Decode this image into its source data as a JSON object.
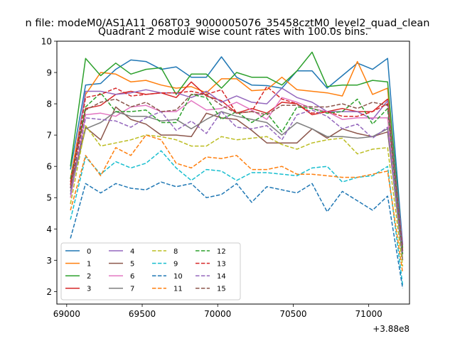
{
  "figure": {
    "suptitle": "n file: modeM0/AS1A11_068T03_9000005076_35458cztM0_level2_quad_clean"
  },
  "chart_data": {
    "type": "line",
    "title": "Quadrant 2 module wise count rates with 100.0s bins.",
    "xlabel": "",
    "ylabel": "",
    "x_offset_label": "+3.88e8",
    "xlim": [
      68935,
      71270
    ],
    "ylim": [
      1.6,
      10.0
    ],
    "xticks": [
      69000,
      69500,
      70000,
      70500,
      71000
    ],
    "yticks": [
      2,
      3,
      4,
      5,
      6,
      7,
      8,
      9,
      10
    ],
    "grid": false,
    "legend": {
      "location": "lower-left",
      "columns": 4
    },
    "x": [
      69025,
      69125,
      69225,
      69325,
      69425,
      69525,
      69625,
      69725,
      69825,
      69925,
      70025,
      70125,
      70225,
      70325,
      70425,
      70525,
      70625,
      70725,
      70825,
      70925,
      71025,
      71125,
      71225
    ],
    "series": [
      {
        "name": "0",
        "color": "#1f77b4",
        "dash": "solid",
        "values": [
          5.9,
          8.6,
          8.65,
          9.1,
          9.4,
          9.35,
          9.1,
          9.18,
          8.85,
          8.85,
          9.5,
          8.85,
          8.6,
          8.58,
          8.5,
          9.05,
          9.05,
          8.5,
          8.9,
          9.3,
          9.1,
          9.45,
          3.5
        ]
      },
      {
        "name": "1",
        "color": "#ff7f0e",
        "dash": "solid",
        "values": [
          5.6,
          8.3,
          9.0,
          8.95,
          8.7,
          8.75,
          8.6,
          8.5,
          8.55,
          8.35,
          8.8,
          8.8,
          8.42,
          8.45,
          8.85,
          8.45,
          8.4,
          8.35,
          8.25,
          9.35,
          8.3,
          8.5,
          3.0
        ]
      },
      {
        "name": "2",
        "color": "#2ca02c",
        "dash": "solid",
        "values": [
          6.0,
          9.45,
          8.9,
          9.3,
          8.95,
          9.1,
          9.15,
          8.3,
          8.95,
          8.95,
          8.5,
          9.0,
          8.85,
          8.85,
          8.6,
          9.05,
          9.65,
          8.55,
          8.6,
          8.6,
          8.75,
          8.7,
          3.4
        ]
      },
      {
        "name": "3",
        "color": "#d62728",
        "dash": "solid",
        "values": [
          5.5,
          7.85,
          7.95,
          8.3,
          8.4,
          8.3,
          8.35,
          8.2,
          8.7,
          8.25,
          8.1,
          7.7,
          7.85,
          7.7,
          8.05,
          8.0,
          7.65,
          7.75,
          7.85,
          7.75,
          7.75,
          8.15,
          3.2
        ]
      },
      {
        "name": "4",
        "color": "#9467bd",
        "dash": "solid",
        "values": [
          5.3,
          8.4,
          8.4,
          8.3,
          8.35,
          8.45,
          8.35,
          8.35,
          8.2,
          8.4,
          8.05,
          8.25,
          8.05,
          8.0,
          8.5,
          8.2,
          8.05,
          7.75,
          7.75,
          7.75,
          7.5,
          8.1,
          3.5
        ]
      },
      {
        "name": "5",
        "color": "#8c564b",
        "dash": "solid",
        "values": [
          5.4,
          7.25,
          6.85,
          7.9,
          7.5,
          7.35,
          7.0,
          7.0,
          6.95,
          7.7,
          7.55,
          7.5,
          7.15,
          6.75,
          6.75,
          6.75,
          7.2,
          6.9,
          7.2,
          7.05,
          6.95,
          7.1,
          3.2
        ]
      },
      {
        "name": "6",
        "color": "#e377c2",
        "dash": "solid",
        "values": [
          5.0,
          7.65,
          7.7,
          7.6,
          7.9,
          7.95,
          7.75,
          7.75,
          8.1,
          7.8,
          7.85,
          8.05,
          7.8,
          7.5,
          8.2,
          8.05,
          7.85,
          7.75,
          7.5,
          7.55,
          7.55,
          7.55,
          3.0
        ]
      },
      {
        "name": "7",
        "color": "#7f7f7f",
        "dash": "solid",
        "values": [
          5.2,
          7.2,
          7.4,
          7.75,
          7.6,
          7.6,
          7.45,
          7.5,
          7.2,
          7.5,
          7.75,
          7.6,
          7.5,
          7.4,
          7.0,
          7.4,
          7.2,
          6.95,
          6.95,
          6.9,
          6.95,
          7.2,
          3.0
        ]
      },
      {
        "name": "8",
        "color": "#bcbd22",
        "dash": "dashed",
        "values": [
          4.8,
          7.3,
          6.65,
          6.75,
          6.85,
          7.0,
          6.95,
          6.85,
          6.65,
          6.65,
          6.95,
          6.85,
          6.9,
          6.95,
          6.7,
          6.55,
          6.75,
          6.85,
          6.9,
          6.4,
          6.55,
          6.6,
          2.8
        ]
      },
      {
        "name": "9",
        "color": "#17becf",
        "dash": "dashed",
        "values": [
          4.3,
          6.3,
          5.75,
          6.15,
          5.95,
          6.1,
          6.5,
          5.95,
          5.55,
          5.9,
          5.85,
          5.55,
          5.8,
          5.8,
          5.75,
          5.7,
          5.95,
          6.0,
          5.5,
          5.65,
          5.7,
          6.0,
          2.2
        ]
      },
      {
        "name": "10",
        "color": "#1f77b4",
        "dash": "dashed",
        "values": [
          3.7,
          5.45,
          5.15,
          5.45,
          5.3,
          5.25,
          5.5,
          5.35,
          5.45,
          5.0,
          5.1,
          5.45,
          4.85,
          5.35,
          5.25,
          5.15,
          5.45,
          4.55,
          5.2,
          4.9,
          4.6,
          5.05,
          2.1
        ]
      },
      {
        "name": "11",
        "color": "#ff7f0e",
        "dash": "dashed",
        "values": [
          4.6,
          6.35,
          5.7,
          6.6,
          6.35,
          7.0,
          6.85,
          6.1,
          5.95,
          6.3,
          6.25,
          6.35,
          5.9,
          5.9,
          6.0,
          5.75,
          5.75,
          5.7,
          5.65,
          5.65,
          5.75,
          5.85,
          2.6
        ]
      },
      {
        "name": "12",
        "color": "#2ca02c",
        "dash": "dashed",
        "values": [
          5.6,
          7.9,
          8.35,
          7.75,
          7.75,
          7.8,
          7.4,
          7.4,
          8.3,
          8.2,
          7.5,
          7.75,
          7.4,
          7.7,
          7.1,
          7.9,
          7.85,
          7.7,
          7.75,
          8.15,
          7.35,
          7.85,
          3.2
        ]
      },
      {
        "name": "13",
        "color": "#d62728",
        "dash": "dashed",
        "values": [
          5.4,
          8.2,
          8.3,
          8.5,
          8.25,
          8.3,
          8.35,
          8.35,
          8.4,
          8.3,
          8.45,
          7.7,
          7.75,
          8.55,
          8.15,
          8.0,
          7.7,
          7.75,
          7.6,
          7.6,
          7.75,
          8.0,
          3.3
        ]
      },
      {
        "name": "14",
        "color": "#9467bd",
        "dash": "dashed",
        "values": [
          5.1,
          7.55,
          7.5,
          7.45,
          7.25,
          7.55,
          7.75,
          7.15,
          7.45,
          7.05,
          7.75,
          7.25,
          7.2,
          7.3,
          6.85,
          7.65,
          7.8,
          7.6,
          7.2,
          7.35,
          6.9,
          7.25,
          3.2
        ]
      },
      {
        "name": "15",
        "color": "#8c564b",
        "dash": "dashed",
        "values": [
          5.3,
          7.8,
          8.05,
          8.15,
          7.9,
          8.05,
          7.75,
          7.8,
          8.3,
          8.3,
          7.95,
          7.7,
          7.75,
          7.65,
          7.95,
          7.95,
          7.9,
          7.9,
          8.0,
          7.85,
          8.05,
          7.95,
          3.3
        ]
      }
    ]
  }
}
